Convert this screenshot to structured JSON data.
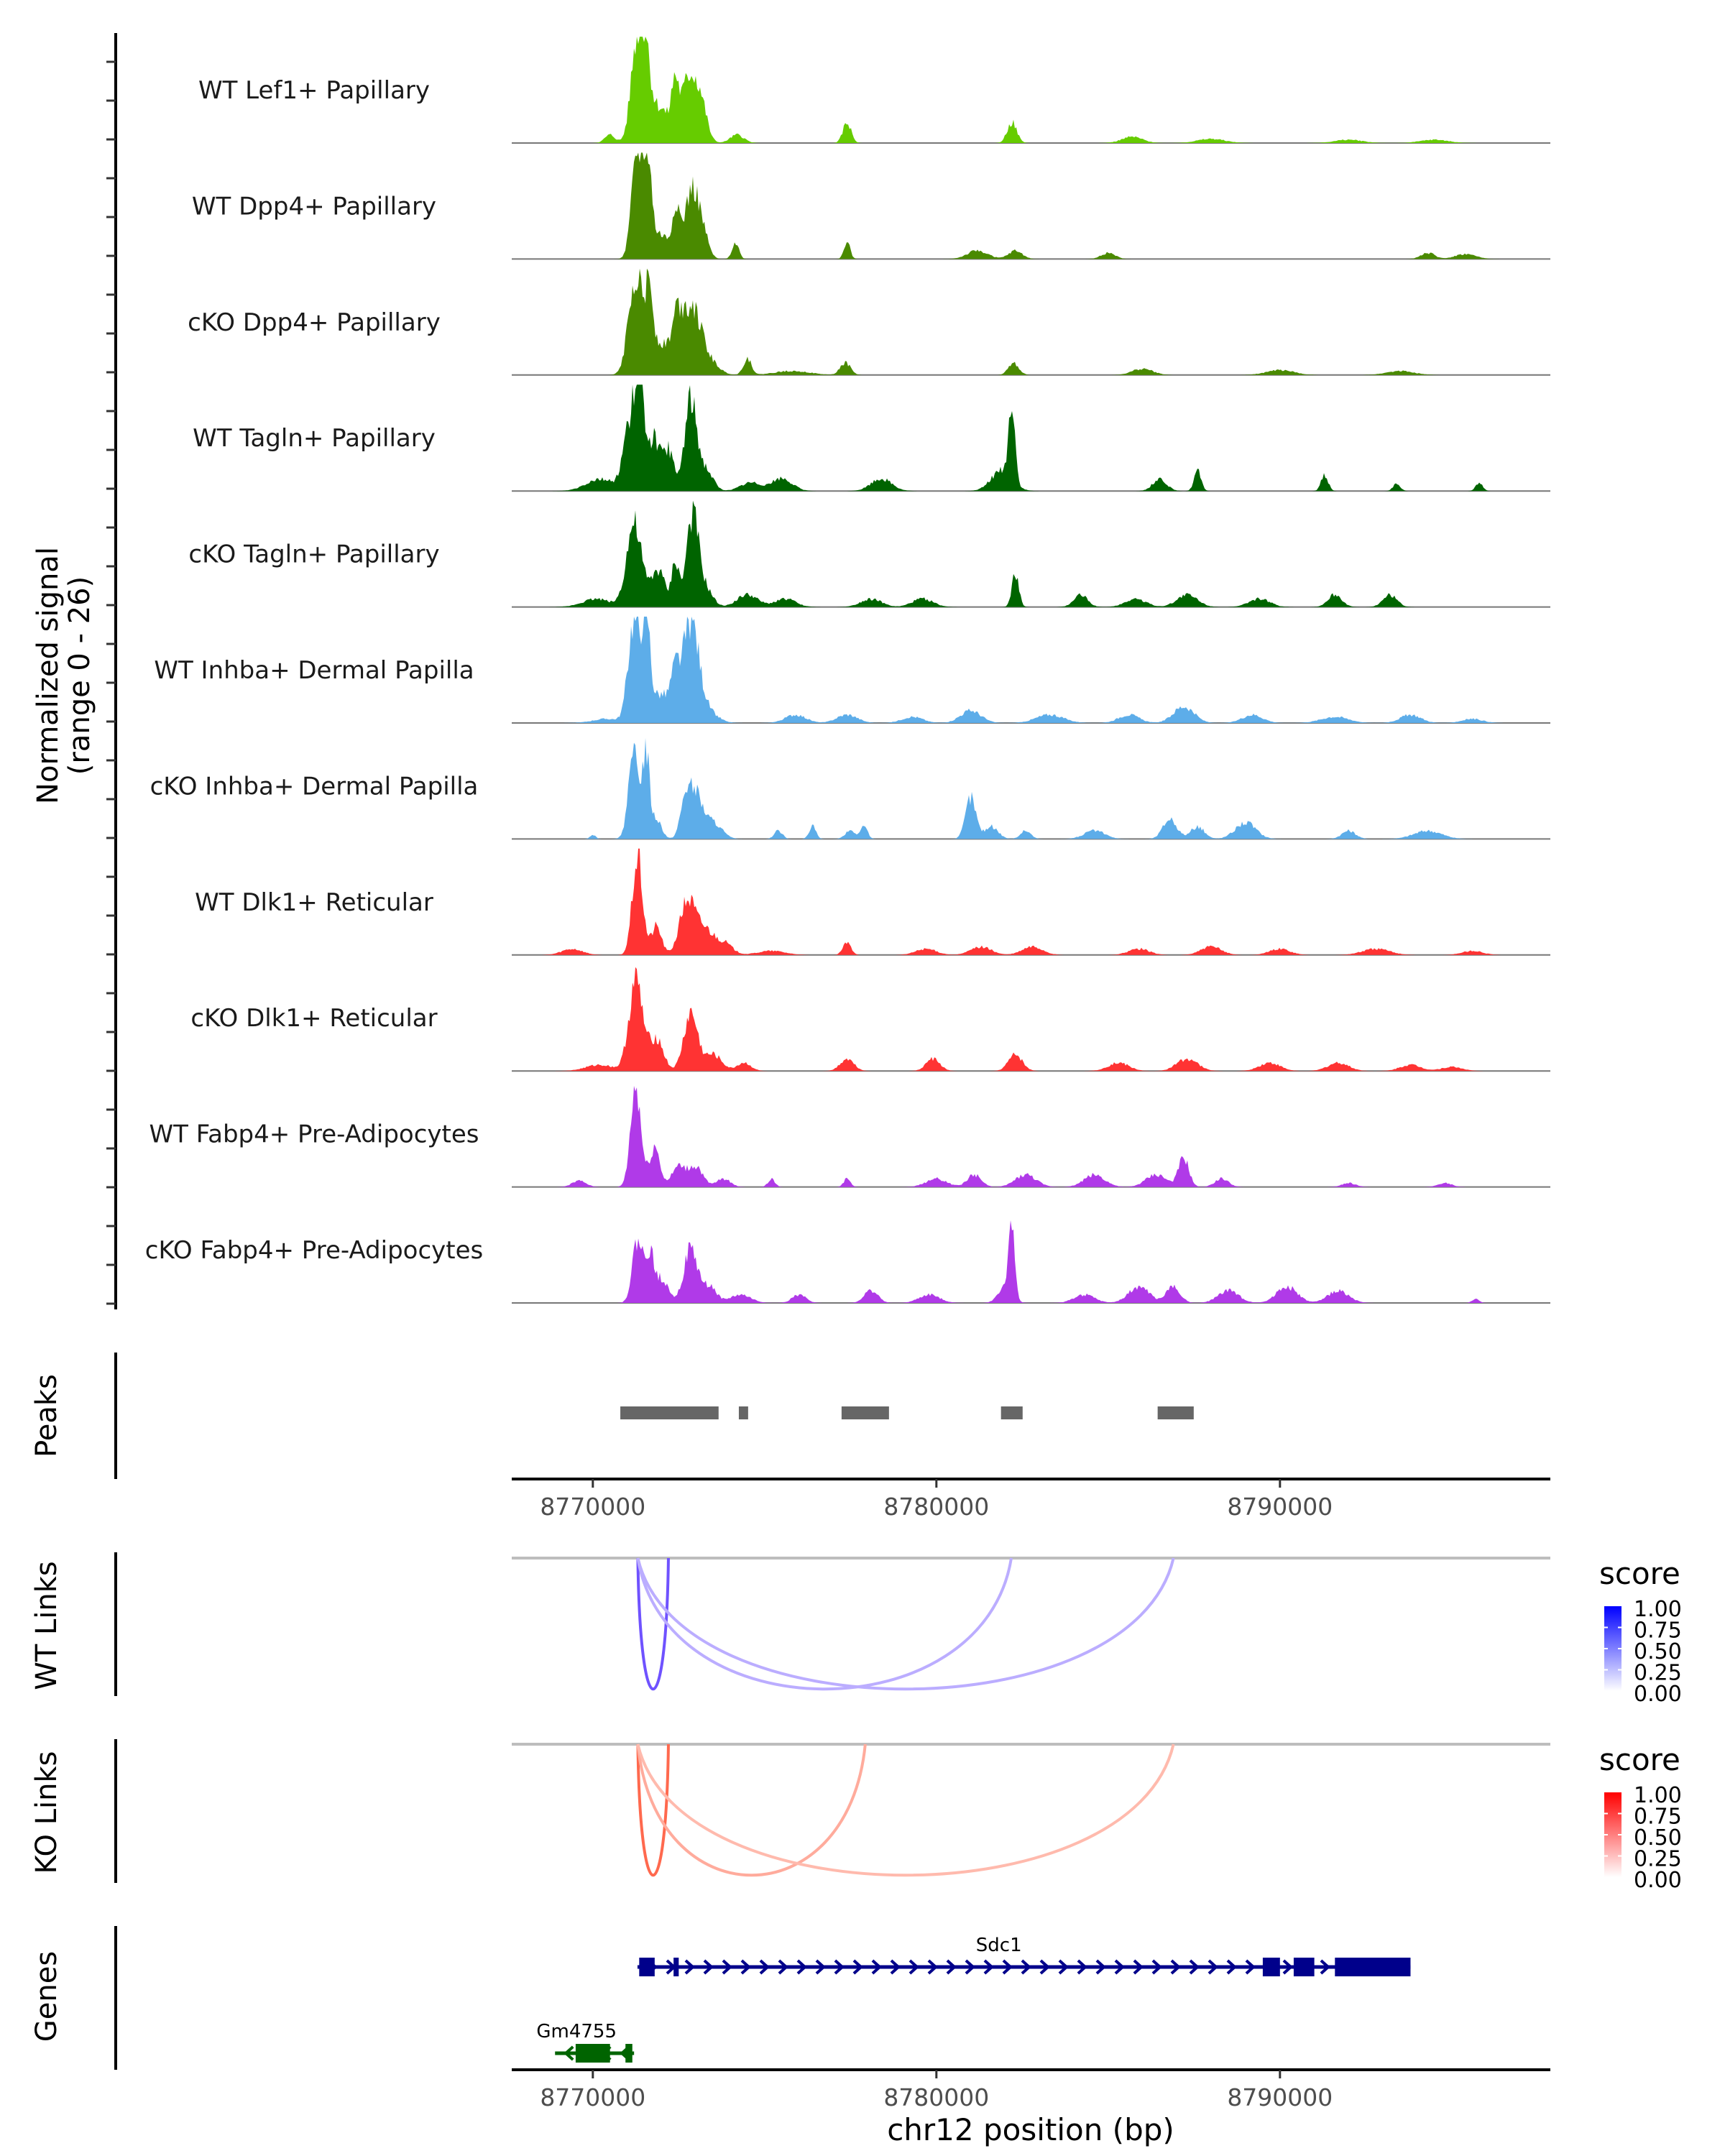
{
  "chart_data": {
    "type": "area",
    "title": "",
    "xlabel": "chr12 position (bp)",
    "ylabel": "Normalized signal\n(range 0 - 26)",
    "ylabel_lines": [
      "Normalized signal",
      "(range 0 - 26)"
    ],
    "signal_range": [
      0,
      26
    ],
    "xlim": [
      8767640,
      8797870
    ],
    "x_ticks": [
      8770000,
      8780000,
      8790000
    ],
    "x_tick_labels": [
      "8770000",
      "8780000",
      "8790000"
    ],
    "grid": false,
    "tracks": [
      {
        "name": "WT Lef1+ Papillary",
        "color": "#66CC00",
        "peaks": [
          [
            8771300,
            26,
            180
          ],
          [
            8771560,
            13,
            120
          ],
          [
            8771900,
            9,
            300
          ],
          [
            8772390,
            11,
            100
          ],
          [
            8772850,
            17,
            260
          ],
          [
            8773200,
            4,
            150
          ],
          [
            8774200,
            2,
            200
          ],
          [
            8777400,
            5,
            120
          ],
          [
            8782200,
            5,
            140
          ],
          [
            8785700,
            1.5,
            300
          ],
          [
            8770500,
            2,
            150
          ],
          [
            8788000,
            1,
            400
          ],
          [
            8792000,
            0.8,
            400
          ],
          [
            8794500,
            0.8,
            400
          ]
        ]
      },
      {
        "name": "WT Dpp4+ Papillary",
        "color": "#4A8A00",
        "peaks": [
          [
            8771300,
            26,
            160
          ],
          [
            8771600,
            20,
            110
          ],
          [
            8771950,
            6,
            300
          ],
          [
            8772420,
            11,
            100
          ],
          [
            8772900,
            17,
            220
          ],
          [
            8773250,
            3,
            150
          ],
          [
            8774150,
            4,
            100
          ],
          [
            8777400,
            4,
            90
          ],
          [
            8781200,
            2,
            300
          ],
          [
            8782300,
            2,
            200
          ],
          [
            8785000,
            1.5,
            200
          ],
          [
            8794300,
            1.5,
            200
          ],
          [
            8795400,
            1.2,
            300
          ]
        ]
      },
      {
        "name": "cKO Dpp4+ Papillary",
        "color": "#4A8A00",
        "peaks": [
          [
            8771250,
            24,
            200
          ],
          [
            8771650,
            14,
            100
          ],
          [
            8771950,
            8,
            400
          ],
          [
            8772450,
            9,
            130
          ],
          [
            8772850,
            16,
            250
          ],
          [
            8773300,
            4,
            300
          ],
          [
            8774500,
            4,
            120
          ],
          [
            8777350,
            3,
            150
          ],
          [
            8782250,
            3,
            150
          ],
          [
            8786000,
            1.5,
            300
          ],
          [
            8790000,
            1.2,
            400
          ],
          [
            8793500,
            1,
            400
          ],
          [
            8775800,
            1,
            500
          ]
        ]
      },
      {
        "name": "WT Tagln+ Papillary",
        "color": "#006400",
        "peaks": [
          [
            8771100,
            17,
            200
          ],
          [
            8771400,
            20,
            150
          ],
          [
            8771800,
            12,
            150
          ],
          [
            8772200,
            10,
            150
          ],
          [
            8772850,
            22,
            180
          ],
          [
            8773300,
            5,
            200
          ],
          [
            8770200,
            3,
            400
          ],
          [
            8774600,
            2,
            300
          ],
          [
            8775500,
            3,
            300
          ],
          [
            8778400,
            3,
            300
          ],
          [
            8781900,
            5,
            300
          ],
          [
            8782200,
            19,
            90
          ],
          [
            8786500,
            3,
            200
          ],
          [
            8787600,
            5,
            100
          ],
          [
            8791300,
            4,
            100
          ],
          [
            8795800,
            2,
            100
          ],
          [
            8793400,
            2,
            100
          ]
        ]
      },
      {
        "name": "cKO Tagln+ Papillary",
        "color": "#006400",
        "peaks": [
          [
            8771200,
            20,
            220
          ],
          [
            8771900,
            9,
            200
          ],
          [
            8772400,
            11,
            100
          ],
          [
            8772900,
            22,
            180
          ],
          [
            8773300,
            4,
            200
          ],
          [
            8770100,
            2,
            400
          ],
          [
            8774500,
            3,
            300
          ],
          [
            8775600,
            2,
            300
          ],
          [
            8778100,
            2,
            300
          ],
          [
            8779600,
            2,
            300
          ],
          [
            8782300,
            8,
            100
          ],
          [
            8784200,
            3,
            200
          ],
          [
            8785800,
            2,
            300
          ],
          [
            8787300,
            3,
            300
          ],
          [
            8789400,
            2,
            300
          ],
          [
            8791600,
            3,
            200
          ],
          [
            8793200,
            3,
            200
          ]
        ]
      },
      {
        "name": "WT Inhba+ Dermal Papilla",
        "color": "#5DADE9",
        "peaks": [
          [
            8771200,
            25,
            170
          ],
          [
            8771550,
            24,
            110
          ],
          [
            8771950,
            7,
            300
          ],
          [
            8772400,
            9,
            130
          ],
          [
            8772850,
            24,
            230
          ],
          [
            8773300,
            3,
            300
          ],
          [
            8770400,
            1,
            400
          ],
          [
            8775900,
            2,
            300
          ],
          [
            8777400,
            2,
            300
          ],
          [
            8779300,
            1.5,
            300
          ],
          [
            8781000,
            3,
            300
          ],
          [
            8783300,
            2,
            400
          ],
          [
            8785600,
            2,
            300
          ],
          [
            8787200,
            4,
            300
          ],
          [
            8789200,
            2,
            300
          ],
          [
            8791600,
            1.5,
            400
          ],
          [
            8793800,
            2,
            300
          ],
          [
            8795600,
            1,
            300
          ]
        ]
      },
      {
        "name": "cKO Inhba+ Dermal Papilla",
        "color": "#5DADE9",
        "peaks": [
          [
            8771200,
            20,
            160
          ],
          [
            8771550,
            20,
            100
          ],
          [
            8771850,
            5,
            150
          ],
          [
            8772700,
            9,
            150
          ],
          [
            8773000,
            10,
            200
          ],
          [
            8773500,
            4,
            250
          ],
          [
            8770000,
            1,
            80
          ],
          [
            8775400,
            2,
            120
          ],
          [
            8776400,
            3,
            100
          ],
          [
            8777500,
            2,
            150
          ],
          [
            8777900,
            3,
            100
          ],
          [
            8781000,
            10,
            150
          ],
          [
            8781600,
            3,
            200
          ],
          [
            8782600,
            2,
            150
          ],
          [
            8784600,
            2,
            300
          ],
          [
            8786800,
            5,
            200
          ],
          [
            8787600,
            3,
            200
          ],
          [
            8789000,
            4,
            300
          ],
          [
            8792000,
            2,
            200
          ],
          [
            8794300,
            2,
            400
          ]
        ]
      },
      {
        "name": "WT Dlk1+ Reticular",
        "color": "#FF3333",
        "peaks": [
          [
            8771300,
            24,
            150
          ],
          [
            8771850,
            7,
            150
          ],
          [
            8772750,
            13,
            220
          ],
          [
            8773250,
            6,
            250
          ],
          [
            8773800,
            3,
            250
          ],
          [
            8769400,
            1.5,
            300
          ],
          [
            8775200,
            1,
            400
          ],
          [
            8777400,
            3,
            120
          ],
          [
            8779700,
            1.5,
            300
          ],
          [
            8781300,
            2,
            300
          ],
          [
            8782800,
            2,
            300
          ],
          [
            8785900,
            1.5,
            300
          ],
          [
            8788000,
            2,
            300
          ],
          [
            8790000,
            1.5,
            300
          ],
          [
            8792800,
            1.5,
            400
          ],
          [
            8795600,
            1,
            300
          ]
        ]
      },
      {
        "name": "cKO Dlk1+ Reticular",
        "color": "#FF3333",
        "peaks": [
          [
            8771250,
            22,
            200
          ],
          [
            8771850,
            8,
            200
          ],
          [
            8772850,
            14,
            200
          ],
          [
            8773500,
            4,
            250
          ],
          [
            8774400,
            2,
            200
          ],
          [
            8770200,
            1.5,
            400
          ],
          [
            8777400,
            3,
            200
          ],
          [
            8779900,
            3,
            200
          ],
          [
            8782300,
            4,
            200
          ],
          [
            8785300,
            2,
            300
          ],
          [
            8787300,
            3,
            300
          ],
          [
            8789700,
            2,
            300
          ],
          [
            8791700,
            2,
            300
          ],
          [
            8793800,
            1.5,
            300
          ],
          [
            8795000,
            1,
            300
          ]
        ]
      },
      {
        "name": "WT Fabp4+ Pre-Adipocytes",
        "color": "#B03AE8",
        "peaks": [
          [
            8771250,
            25,
            150
          ],
          [
            8771800,
            10,
            150
          ],
          [
            8772500,
            5,
            200
          ],
          [
            8773000,
            5,
            200
          ],
          [
            8773800,
            2,
            200
          ],
          [
            8769600,
            1.5,
            200
          ],
          [
            8775200,
            2,
            100
          ],
          [
            8777400,
            2,
            100
          ],
          [
            8780000,
            2,
            300
          ],
          [
            8781100,
            3,
            200
          ],
          [
            8782600,
            3,
            300
          ],
          [
            8784600,
            3,
            300
          ],
          [
            8786400,
            3,
            300
          ],
          [
            8787200,
            7,
            150
          ],
          [
            8788300,
            2,
            200
          ],
          [
            8792000,
            1,
            200
          ],
          [
            8794800,
            1,
            200
          ]
        ]
      },
      {
        "name": "cKO Fabp4+ Pre-Adipocytes",
        "color": "#B03AE8",
        "peaks": [
          [
            8771300,
            15,
            150
          ],
          [
            8771650,
            11,
            120
          ],
          [
            8772000,
            6,
            200
          ],
          [
            8772850,
            13,
            200
          ],
          [
            8773400,
            4,
            200
          ],
          [
            8774300,
            2,
            300
          ],
          [
            8776000,
            2,
            200
          ],
          [
            8778100,
            3,
            200
          ],
          [
            8779800,
            2,
            300
          ],
          [
            8782200,
            19,
            80
          ],
          [
            8782000,
            4,
            200
          ],
          [
            8784300,
            2,
            300
          ],
          [
            8785900,
            4,
            300
          ],
          [
            8786900,
            4,
            200
          ],
          [
            8788500,
            3,
            300
          ],
          [
            8790200,
            4,
            300
          ],
          [
            8791700,
            3,
            300
          ],
          [
            8795700,
            1,
            100
          ]
        ]
      }
    ],
    "peaks_track": {
      "label": "Peaks",
      "color": "#666666",
      "regions": [
        [
          8770800,
          8773660
        ],
        [
          8774250,
          8774520
        ],
        [
          8777240,
          8778620
        ],
        [
          8781880,
          8782510
        ],
        [
          8786440,
          8787490
        ]
      ]
    },
    "links_tracks": [
      {
        "label": "WT Links",
        "legend_title": "score",
        "low_color": "#FFFFFF",
        "high_color": "#0000FF",
        "legend_ticks": [
          "1.00",
          "0.75",
          "0.50",
          "0.25",
          "0.00"
        ],
        "links": [
          {
            "start": 8771310,
            "end": 8772200,
            "score": 0.7
          },
          {
            "start": 8771310,
            "end": 8782180,
            "score": 0.25
          },
          {
            "start": 8771310,
            "end": 8786900,
            "score": 0.25
          }
        ]
      },
      {
        "label": "KO Links",
        "legend_title": "score",
        "low_color": "#FFFFFF",
        "high_color": "#FF0000",
        "legend_ticks": [
          "1.00",
          "0.75",
          "0.50",
          "0.25",
          "0.00"
        ],
        "links": [
          {
            "start": 8771310,
            "end": 8772200,
            "score": 0.65
          },
          {
            "start": 8771310,
            "end": 8777930,
            "score": 0.3
          },
          {
            "start": 8771310,
            "end": 8786900,
            "score": 0.22
          }
        ]
      }
    ],
    "genes_track": {
      "label": "Genes",
      "genes": [
        {
          "name": "Sdc1",
          "strand": "+",
          "color": "#00008B",
          "start": 8771300,
          "end": 8793800,
          "exons": [
            [
              8771350,
              8771800
            ],
            [
              8772350,
              8772500
            ],
            [
              8789500,
              8790000
            ],
            [
              8790400,
              8791000
            ],
            [
              8791600,
              8793800
            ]
          ]
        },
        {
          "name": "Gm4755",
          "strand": "-",
          "color": "#006400",
          "start": 8768900,
          "end": 8771200,
          "exons": [
            [
              8769500,
              8770500
            ],
            [
              8770950,
              8771150
            ]
          ]
        }
      ]
    }
  }
}
